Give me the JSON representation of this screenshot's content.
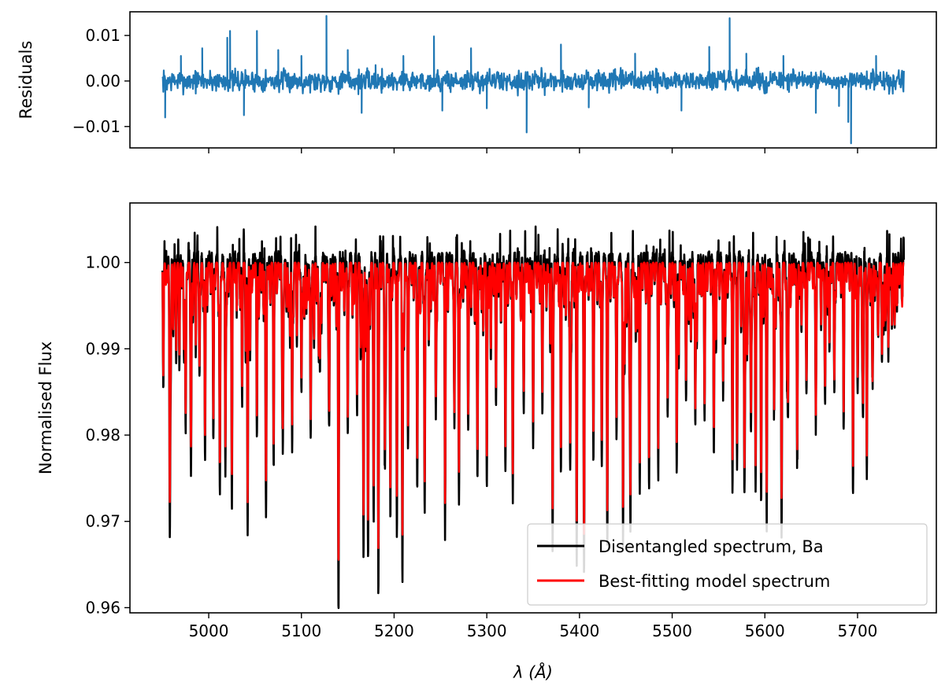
{
  "chart_data": [
    {
      "panel": "residuals",
      "type": "line",
      "title": "",
      "xlabel": "",
      "ylabel": "Residuals",
      "xlim": [
        4915,
        5785
      ],
      "ylim": [
        -0.0147,
        0.0152
      ],
      "xticks": [
        5000,
        5100,
        5200,
        5300,
        5400,
        5500,
        5600,
        5700
      ],
      "yticks": [
        -0.01,
        0.0,
        0.01
      ],
      "ytick_labels": [
        "−0.01",
        "0.00",
        "0.01"
      ],
      "grid": false,
      "colors": {
        "series": "#1f77b4"
      },
      "series": [
        {
          "x_range": [
            4950,
            5750
          ],
          "noise_amplitude": 0.0022,
          "spikes": [
            {
              "x": 4953,
              "y": -0.008
            },
            {
              "x": 4970,
              "y": 0.0055
            },
            {
              "x": 4993,
              "y": 0.0072
            },
            {
              "x": 5020,
              "y": 0.0095
            },
            {
              "x": 5023,
              "y": 0.011
            },
            {
              "x": 5038,
              "y": -0.0075
            },
            {
              "x": 5052,
              "y": 0.011
            },
            {
              "x": 5075,
              "y": 0.0068
            },
            {
              "x": 5100,
              "y": 0.0055
            },
            {
              "x": 5127,
              "y": 0.0143
            },
            {
              "x": 5150,
              "y": 0.0068
            },
            {
              "x": 5165,
              "y": -0.007
            },
            {
              "x": 5180,
              "y": 0.0035
            },
            {
              "x": 5210,
              "y": 0.0055
            },
            {
              "x": 5243,
              "y": 0.0098
            },
            {
              "x": 5252,
              "y": -0.0065
            },
            {
              "x": 5283,
              "y": 0.0072
            },
            {
              "x": 5300,
              "y": -0.006
            },
            {
              "x": 5343,
              "y": -0.0113
            },
            {
              "x": 5380,
              "y": 0.008
            },
            {
              "x": 5410,
              "y": -0.0058
            },
            {
              "x": 5460,
              "y": 0.006
            },
            {
              "x": 5510,
              "y": -0.0065
            },
            {
              "x": 5540,
              "y": 0.0075
            },
            {
              "x": 5562,
              "y": 0.0138
            },
            {
              "x": 5580,
              "y": 0.006
            },
            {
              "x": 5620,
              "y": 0.0055
            },
            {
              "x": 5655,
              "y": -0.007
            },
            {
              "x": 5680,
              "y": -0.0055
            },
            {
              "x": 5690,
              "y": -0.009
            },
            {
              "x": 5693,
              "y": -0.0137
            },
            {
              "x": 5720,
              "y": 0.0055
            }
          ]
        }
      ]
    },
    {
      "panel": "spectrum",
      "type": "line",
      "title": "",
      "xlabel": "λ (Å)",
      "ylabel": "Normalised Flux",
      "xlim": [
        4915,
        5785
      ],
      "ylim": [
        0.9594,
        1.0069
      ],
      "xticks": [
        5000,
        5100,
        5200,
        5300,
        5400,
        5500,
        5600,
        5700
      ],
      "yticks": [
        0.96,
        0.97,
        0.98,
        0.99,
        1.0
      ],
      "ytick_labels": [
        "0.96",
        "0.97",
        "0.98",
        "0.99",
        "1.00"
      ],
      "grid": false,
      "legend_position": "bottom-right",
      "series": [
        {
          "name": "Disentangled spectrum, Ba",
          "color": "#000000",
          "continuum": 1.0,
          "noise_above_continuum": 0.0027,
          "absorption_lines": [
            {
              "x": 4951,
              "y": 0.9868
            },
            {
              "x": 4958,
              "y": 0.9682
            },
            {
              "x": 4965,
              "y": 0.9895
            },
            {
              "x": 4975,
              "y": 0.9855
            },
            {
              "x": 4981,
              "y": 0.98
            },
            {
              "x": 4990,
              "y": 0.986
            },
            {
              "x": 4996,
              "y": 0.978
            },
            {
              "x": 5005,
              "y": 0.982
            },
            {
              "x": 5012,
              "y": 0.9722
            },
            {
              "x": 5018,
              "y": 0.975
            },
            {
              "x": 5025,
              "y": 0.98
            },
            {
              "x": 5036,
              "y": 0.984
            },
            {
              "x": 5042,
              "y": 0.9707
            },
            {
              "x": 5052,
              "y": 0.983
            },
            {
              "x": 5062,
              "y": 0.977
            },
            {
              "x": 5070,
              "y": 0.986
            },
            {
              "x": 5080,
              "y": 0.981
            },
            {
              "x": 5090,
              "y": 0.978
            },
            {
              "x": 5100,
              "y": 0.984
            },
            {
              "x": 5110,
              "y": 0.979
            },
            {
              "x": 5120,
              "y": 0.987
            },
            {
              "x": 5130,
              "y": 0.981
            },
            {
              "x": 5140,
              "y": 0.9707
            },
            {
              "x": 5150,
              "y": 0.979
            },
            {
              "x": 5160,
              "y": 0.983
            },
            {
              "x": 5167,
              "y": 0.9656
            },
            {
              "x": 5172,
              "y": 0.9665
            },
            {
              "x": 5178,
              "y": 0.972
            },
            {
              "x": 5183,
              "y": 0.9617
            },
            {
              "x": 5190,
              "y": 0.976
            },
            {
              "x": 5196,
              "y": 0.971
            },
            {
              "x": 5203,
              "y": 0.968
            },
            {
              "x": 5209,
              "y": 0.9635
            },
            {
              "x": 5215,
              "y": 0.978
            },
            {
              "x": 5225,
              "y": 0.974
            },
            {
              "x": 5233,
              "y": 0.97
            },
            {
              "x": 5245,
              "y": 0.982
            },
            {
              "x": 5255,
              "y": 0.977
            },
            {
              "x": 5265,
              "y": 0.98
            },
            {
              "x": 5270,
              "y": 0.972
            },
            {
              "x": 5280,
              "y": 0.981
            },
            {
              "x": 5290,
              "y": 0.976
            },
            {
              "x": 5300,
              "y": 0.98
            },
            {
              "x": 5310,
              "y": 0.984
            },
            {
              "x": 5320,
              "y": 0.979
            },
            {
              "x": 5328,
              "y": 0.973
            },
            {
              "x": 5340,
              "y": 0.985
            },
            {
              "x": 5350,
              "y": 0.979
            },
            {
              "x": 5360,
              "y": 0.983
            },
            {
              "x": 5371,
              "y": 0.9665
            },
            {
              "x": 5380,
              "y": 0.981
            },
            {
              "x": 5390,
              "y": 0.976
            },
            {
              "x": 5397,
              "y": 0.97
            },
            {
              "x": 5405,
              "y": 0.9685
            },
            {
              "x": 5415,
              "y": 0.978
            },
            {
              "x": 5424,
              "y": 0.976
            },
            {
              "x": 5430,
              "y": 0.9685
            },
            {
              "x": 5440,
              "y": 0.979
            },
            {
              "x": 5447,
              "y": 0.9665
            },
            {
              "x": 5455,
              "y": 0.969
            },
            {
              "x": 5465,
              "y": 0.979
            },
            {
              "x": 5475,
              "y": 0.982
            },
            {
              "x": 5485,
              "y": 0.977
            },
            {
              "x": 5495,
              "y": 0.982
            },
            {
              "x": 5505,
              "y": 0.978
            },
            {
              "x": 5515,
              "y": 0.985
            },
            {
              "x": 5525,
              "y": 0.98
            },
            {
              "x": 5535,
              "y": 0.983
            },
            {
              "x": 5545,
              "y": 0.979
            },
            {
              "x": 5555,
              "y": 0.984
            },
            {
              "x": 5565,
              "y": 0.976
            },
            {
              "x": 5570,
              "y": 0.976
            },
            {
              "x": 5578,
              "y": 0.974
            },
            {
              "x": 5585,
              "y": 0.98
            },
            {
              "x": 5590,
              "y": 0.974
            },
            {
              "x": 5596,
              "y": 0.972
            },
            {
              "x": 5602,
              "y": 0.9693
            },
            {
              "x": 5610,
              "y": 0.98
            },
            {
              "x": 5618,
              "y": 0.97
            },
            {
              "x": 5625,
              "y": 0.982
            },
            {
              "x": 5635,
              "y": 0.978
            },
            {
              "x": 5645,
              "y": 0.986
            },
            {
              "x": 5655,
              "y": 0.981
            },
            {
              "x": 5665,
              "y": 0.984
            },
            {
              "x": 5675,
              "y": 0.987
            },
            {
              "x": 5685,
              "y": 0.983
            },
            {
              "x": 5695,
              "y": 0.983
            },
            {
              "x": 5700,
              "y": 0.986
            },
            {
              "x": 5706,
              "y": 0.982
            },
            {
              "x": 5710,
              "y": 0.9737
            },
            {
              "x": 5716,
              "y": 0.988
            },
            {
              "x": 5722,
              "y": 0.992
            },
            {
              "x": 5730,
              "y": 0.995
            },
            {
              "x": 5740,
              "y": 0.996
            },
            {
              "x": 5748,
              "y": 0.996
            }
          ]
        },
        {
          "name": "Best-fitting model spectrum",
          "color": "#ff0000",
          "continuum": 1.0,
          "line_depth_ratio": 0.85
        }
      ],
      "legend": [
        {
          "label": "Disentangled spectrum, Ba",
          "color": "#000000"
        },
        {
          "label": "Best-fitting model spectrum",
          "color": "#ff0000"
        }
      ]
    }
  ]
}
